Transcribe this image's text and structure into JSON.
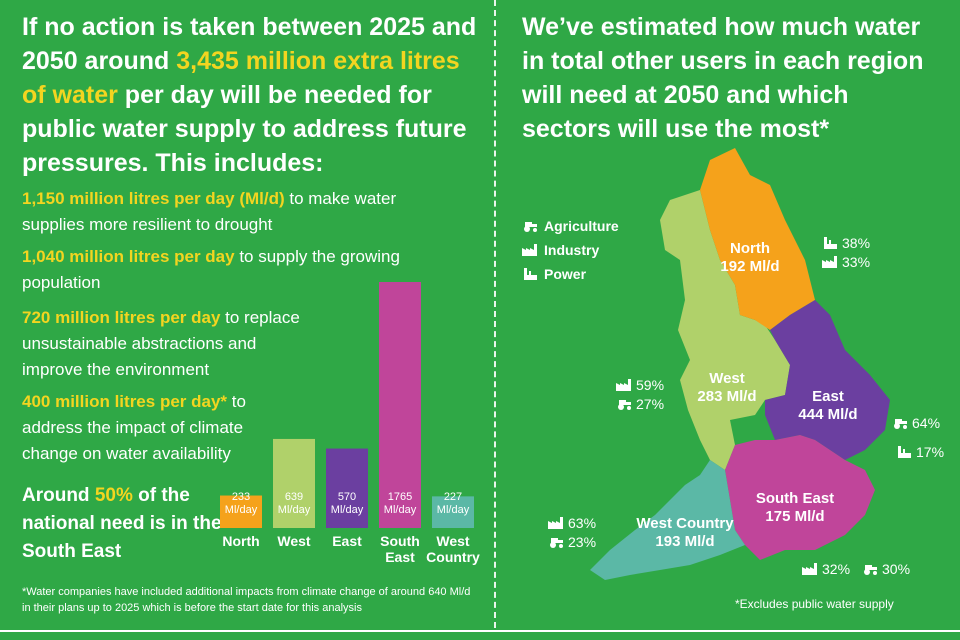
{
  "left": {
    "headline_a": "If no action is taken between 2025 and 2050 around ",
    "headline_highlight": "3,435 million extra litres of water",
    "headline_b": " per day will be needed for public water supply to address future pressures. This includes:",
    "items": [
      {
        "highlight": "1,150 million litres per day (Ml/d)",
        "text": " to make water supplies more resilient to drought"
      },
      {
        "highlight": "1,040 million litres per day",
        "text": " to supply the growing population"
      },
      {
        "highlight": "720 million litres per day",
        "text": " to replace unsustainable abstractions and improve the environment"
      },
      {
        "highlight": "400 million litres per day*",
        "text": " to address the impact of climate change on water availability"
      }
    ],
    "se_note_a": "Around ",
    "se_note_highlight": "50%",
    "se_note_b": " of the national need is in the South East",
    "footnote": "*Water companies have included additional impacts from climate change of around 640 Ml/d in their plans up to 2025 which is before the start date for this analysis"
  },
  "chart_data": {
    "type": "bar",
    "categories": [
      "North",
      "West",
      "East",
      "South East",
      "West Country"
    ],
    "values": [
      233,
      639,
      570,
      1765,
      227
    ],
    "value_labels": [
      "233 Ml/day",
      "639 Ml/day",
      "570 Ml/day",
      "1765 Ml/day",
      "227 Ml/day"
    ],
    "colors": [
      "#f5a21b",
      "#b0d16a",
      "#6b3fa0",
      "#c0459a",
      "#5bb8a6"
    ],
    "title": "",
    "xlabel": "",
    "ylabel": ""
  },
  "right": {
    "headline": "We’ve estimated how much water in total other users in each region will need at 2050 and which sectors will use the most*",
    "legend": [
      {
        "icon": "tractor-icon",
        "label": "Agriculture"
      },
      {
        "icon": "factory-icon",
        "label": "Industry"
      },
      {
        "icon": "power-station-icon",
        "label": "Power"
      }
    ],
    "regions": [
      {
        "name": "North",
        "value": "192 Ml/d",
        "color": "#f5a21b"
      },
      {
        "name": "West",
        "value": "283 Ml/d",
        "color": "#b0d16a"
      },
      {
        "name": "East",
        "value": "444 Ml/d",
        "color": "#6b3fa0"
      },
      {
        "name": "South East",
        "value": "175 Ml/d",
        "color": "#c0459a"
      },
      {
        "name": "West Country",
        "value": "193 Ml/d",
        "color": "#5bb8a6"
      }
    ],
    "stats": {
      "north": [
        {
          "icon": "power-station-icon",
          "value": "38%"
        },
        {
          "icon": "factory-icon",
          "value": "33%"
        }
      ],
      "west": [
        {
          "icon": "factory-icon",
          "value": "59%"
        },
        {
          "icon": "tractor-icon",
          "value": "27%"
        }
      ],
      "east": [
        {
          "icon": "tractor-icon",
          "value": "64%"
        },
        {
          "icon": "power-station-icon",
          "value": "17%"
        }
      ],
      "south_east": [
        {
          "icon": "factory-icon",
          "value": "32%"
        },
        {
          "icon": "tractor-icon",
          "value": "30%"
        }
      ],
      "west_country": [
        {
          "icon": "factory-icon",
          "value": "63%"
        },
        {
          "icon": "tractor-icon",
          "value": "23%"
        }
      ]
    },
    "excludes_note": "*Excludes public water supply"
  }
}
